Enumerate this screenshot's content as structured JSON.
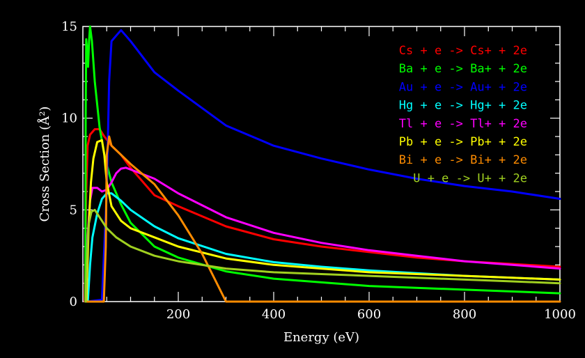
{
  "chart_data": {
    "type": "line",
    "title": "",
    "xlabel": "Energy (eV)",
    "ylabel": "Cross Section (Å²)",
    "xlim": [
      0,
      1000
    ],
    "ylim": [
      0,
      15
    ],
    "x_ticks": [
      200,
      400,
      600,
      800,
      1000
    ],
    "x_tick_labels": [
      "200",
      "400",
      "600",
      "800",
      "1000"
    ],
    "y_ticks": [
      0,
      5,
      10,
      15
    ],
    "y_tick_labels": [
      "0",
      "5",
      "10",
      "15"
    ],
    "grid": false,
    "legend_position": "top-right",
    "background": "#000000",
    "axis_color": "#ffffff",
    "series": [
      {
        "name": "Cs + e -> Cs+ + 2e",
        "color": "#ff0000",
        "points": [
          [
            3.9,
            0
          ],
          [
            7,
            6
          ],
          [
            10,
            8.5
          ],
          [
            15,
            9.1
          ],
          [
            25,
            9.4
          ],
          [
            35,
            9.4
          ],
          [
            45,
            9.0
          ],
          [
            60,
            8.5
          ],
          [
            80,
            8.0
          ],
          [
            100,
            7.3
          ],
          [
            150,
            5.8
          ],
          [
            200,
            5.2
          ],
          [
            300,
            4.1
          ],
          [
            400,
            3.4
          ],
          [
            500,
            3.0
          ],
          [
            600,
            2.7
          ],
          [
            700,
            2.4
          ],
          [
            800,
            2.2
          ],
          [
            900,
            2.05
          ],
          [
            1000,
            1.9
          ]
        ]
      },
      {
        "name": "Ba + e -> Ba+ + 2e",
        "color": "#00ff00",
        "points": [
          [
            5.2,
            0
          ],
          [
            5.8,
            10
          ],
          [
            7,
            14.3
          ],
          [
            9,
            13.7
          ],
          [
            11,
            12.8
          ],
          [
            13,
            14.2
          ],
          [
            15,
            15.0
          ],
          [
            19,
            14.2
          ],
          [
            25,
            12
          ],
          [
            35,
            9.5
          ],
          [
            45,
            8
          ],
          [
            60,
            6.5
          ],
          [
            80,
            5.3
          ],
          [
            100,
            4.3
          ],
          [
            150,
            3.0
          ],
          [
            200,
            2.4
          ],
          [
            300,
            1.65
          ],
          [
            400,
            1.25
          ],
          [
            600,
            0.85
          ],
          [
            800,
            0.65
          ],
          [
            1000,
            0.45
          ]
        ]
      },
      {
        "name": "Au + e -> Au+ + 2e",
        "color": "#0000ff",
        "points": [
          [
            9.2,
            0
          ],
          [
            40,
            0.1
          ],
          [
            50,
            6
          ],
          [
            55,
            12
          ],
          [
            60,
            14.2
          ],
          [
            70,
            14.5
          ],
          [
            80,
            14.8
          ],
          [
            90,
            14.5
          ],
          [
            100,
            14.2
          ],
          [
            150,
            12.5
          ],
          [
            200,
            11.5
          ],
          [
            300,
            9.6
          ],
          [
            400,
            8.5
          ],
          [
            500,
            7.8
          ],
          [
            600,
            7.2
          ],
          [
            700,
            6.7
          ],
          [
            800,
            6.3
          ],
          [
            900,
            6.0
          ],
          [
            1000,
            5.6
          ]
        ]
      },
      {
        "name": "Hg + e -> Hg+ + 2e",
        "color": "#00ffff",
        "points": [
          [
            10.4,
            0
          ],
          [
            15,
            2
          ],
          [
            20,
            3.5
          ],
          [
            30,
            4.8
          ],
          [
            40,
            5.6
          ],
          [
            50,
            5.9
          ],
          [
            60,
            5.9
          ],
          [
            80,
            5.5
          ],
          [
            100,
            5.0
          ],
          [
            150,
            4.1
          ],
          [
            200,
            3.45
          ],
          [
            300,
            2.6
          ],
          [
            400,
            2.15
          ],
          [
            500,
            1.9
          ],
          [
            600,
            1.7
          ],
          [
            700,
            1.55
          ],
          [
            800,
            1.4
          ],
          [
            900,
            1.3
          ],
          [
            1000,
            1.2
          ]
        ]
      },
      {
        "name": "Tl + e -> Tl+ + 2e",
        "color": "#ff00ff",
        "points": [
          [
            6.1,
            0
          ],
          [
            10,
            3.5
          ],
          [
            15,
            5.5
          ],
          [
            20,
            6.2
          ],
          [
            30,
            6.2
          ],
          [
            40,
            6.0
          ],
          [
            50,
            6.1
          ],
          [
            60,
            6.5
          ],
          [
            70,
            7.0
          ],
          [
            80,
            7.25
          ],
          [
            90,
            7.3
          ],
          [
            100,
            7.2
          ],
          [
            150,
            6.7
          ],
          [
            200,
            5.9
          ],
          [
            300,
            4.6
          ],
          [
            400,
            3.75
          ],
          [
            500,
            3.2
          ],
          [
            600,
            2.8
          ],
          [
            700,
            2.5
          ],
          [
            800,
            2.2
          ],
          [
            900,
            2.0
          ],
          [
            1000,
            1.8
          ]
        ]
      },
      {
        "name": "Pb + e -> Pb+ + 2e",
        "color": "#ffff00",
        "points": [
          [
            7.4,
            0
          ],
          [
            12,
            4
          ],
          [
            17,
            6.5
          ],
          [
            22,
            7.8
          ],
          [
            30,
            8.7
          ],
          [
            40,
            8.8
          ],
          [
            45,
            8.0
          ],
          [
            50,
            6.5
          ],
          [
            60,
            5.2
          ],
          [
            80,
            4.4
          ],
          [
            100,
            4.0
          ],
          [
            150,
            3.5
          ],
          [
            200,
            3.0
          ],
          [
            300,
            2.35
          ],
          [
            400,
            2.0
          ],
          [
            500,
            1.8
          ],
          [
            600,
            1.6
          ],
          [
            700,
            1.5
          ],
          [
            800,
            1.4
          ],
          [
            900,
            1.3
          ],
          [
            1000,
            1.2
          ]
        ]
      },
      {
        "name": "Bi + e -> Bi+ + 2e",
        "color": "#ff8c00",
        "points": [
          [
            7.3,
            0
          ],
          [
            12,
            0
          ],
          [
            44,
            0
          ],
          [
            48,
            3
          ],
          [
            50,
            8
          ],
          [
            55,
            9.0
          ],
          [
            60,
            8.5
          ],
          [
            80,
            8.0
          ],
          [
            100,
            7.5
          ],
          [
            150,
            6.4
          ],
          [
            200,
            4.7
          ],
          [
            250,
            2.6
          ],
          [
            300,
            0
          ],
          [
            1000,
            0
          ]
        ]
      },
      {
        "name": "U + e -> U+ + 2e",
        "color": "#a0d020",
        "points": [
          [
            6.2,
            0
          ],
          [
            8,
            2
          ],
          [
            12,
            4.2
          ],
          [
            18,
            4.9
          ],
          [
            25,
            5.0
          ],
          [
            35,
            4.6
          ],
          [
            50,
            4.0
          ],
          [
            70,
            3.5
          ],
          [
            100,
            3.0
          ],
          [
            150,
            2.5
          ],
          [
            200,
            2.2
          ],
          [
            300,
            1.8
          ],
          [
            400,
            1.6
          ],
          [
            500,
            1.5
          ],
          [
            600,
            1.4
          ],
          [
            700,
            1.3
          ],
          [
            800,
            1.2
          ],
          [
            900,
            1.1
          ],
          [
            1000,
            1.0
          ]
        ]
      }
    ]
  }
}
